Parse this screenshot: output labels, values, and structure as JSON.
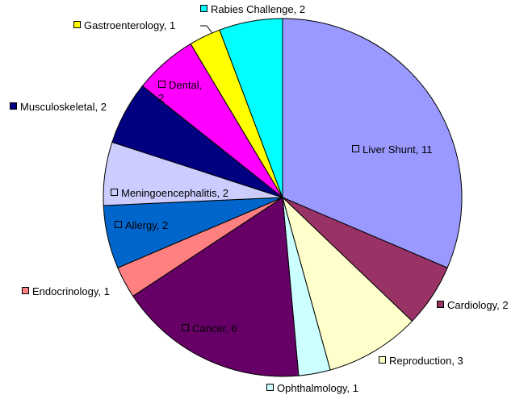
{
  "chart_data": {
    "type": "pie",
    "values": [
      11,
      2,
      3,
      1,
      6,
      1,
      2,
      2,
      2,
      2,
      1,
      2
    ],
    "value_labels": [
      "Liver Shunt, 11",
      "Cardiology, 2",
      "Reproduction, 3",
      "Ophthalmology, 1",
      "Cancer, 6",
      "Endocrinology, 1",
      "Allergy, 2",
      "Meningoencephalitis, 2",
      "Musculoskeletal, 2",
      "Dental, 2",
      "Gastroenterology, 1",
      "Rabies Challenge, 2"
    ],
    "colors": [
      "#9999ff",
      "#993366",
      "#ffffcc",
      "#ccffff",
      "#660066",
      "#ff8080",
      "#0066cc",
      "#ccccff",
      "#000080",
      "#ff00ff",
      "#ffff00",
      "#00ffff"
    ]
  }
}
